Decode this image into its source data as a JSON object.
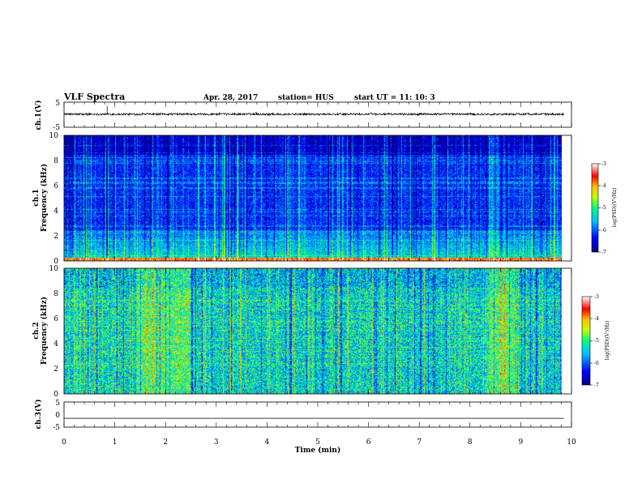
{
  "header": {
    "title": "VLF Spectra",
    "date": "Apr. 28, 2017",
    "station": "station= HUS",
    "start": "start  UT =   11: 10: 3"
  },
  "chart_data": {
    "type": "heatmap",
    "title": "VLF Spectra",
    "xlabel": "Time  (min)",
    "xlim": [
      0,
      10
    ],
    "x_ticks": [
      "0",
      "1",
      "2",
      "3",
      "4",
      "5",
      "6",
      "7",
      "8",
      "9",
      "10"
    ],
    "data_end_min": 9.85,
    "panels": [
      {
        "name": "ch1-waveform",
        "type": "line",
        "ylabel": "ch.1(V)",
        "ylim": [
          -5,
          5
        ],
        "y_ticks": [
          "5",
          "-5"
        ],
        "baseline": 0.2,
        "noise_amplitude": 0.4
      },
      {
        "name": "ch1-spectrogram",
        "type": "heatmap",
        "ylabel_line1": "ch.1",
        "ylabel_line2": "Frequency  (kHz)",
        "ylim": [
          0,
          10
        ],
        "y_ticks": [
          "0",
          "2",
          "4",
          "6",
          "8",
          "10"
        ],
        "value_range_log_psd": [
          -7,
          -3
        ],
        "typical_log_psd": -6.3,
        "noise_band_khz": [
          0,
          2.5
        ],
        "bright_time_min": [
          8.4,
          8.6
        ]
      },
      {
        "name": "ch2-spectrogram",
        "type": "heatmap",
        "ylabel_line1": "ch.2",
        "ylabel_line2": "Frequency  (kHz)",
        "ylim": [
          0,
          10
        ],
        "y_ticks": [
          "0",
          "2",
          "4",
          "6",
          "8",
          "10"
        ],
        "value_range_log_psd": [
          -7,
          -3
        ],
        "typical_log_psd": -5.4,
        "bright_time_min": [
          1.4,
          2.5,
          8.4,
          8.9
        ]
      },
      {
        "name": "ch3-waveform",
        "type": "line",
        "ylabel": "ch.3(V)",
        "ylim": [
          -5,
          5
        ],
        "y_ticks": [
          "5",
          "0",
          "-5"
        ],
        "constant_value": -1.5
      }
    ],
    "colorbars": [
      {
        "label": "log(PSD)(V²/Hz)",
        "range": [
          -7,
          -3
        ],
        "ticks": [
          "-3",
          "-4",
          "-5",
          "-6",
          "-7"
        ]
      },
      {
        "label": "log(PSD)(V²/Hz)",
        "range": [
          -7,
          -3
        ],
        "ticks": [
          "-3",
          "-4",
          "-5",
          "-6",
          "-7"
        ]
      }
    ],
    "colormap": [
      "#000080",
      "#0000ff",
      "#00c0ff",
      "#00ff80",
      "#c0ff00",
      "#ffc000",
      "#ff0000",
      "#ffffff"
    ]
  }
}
